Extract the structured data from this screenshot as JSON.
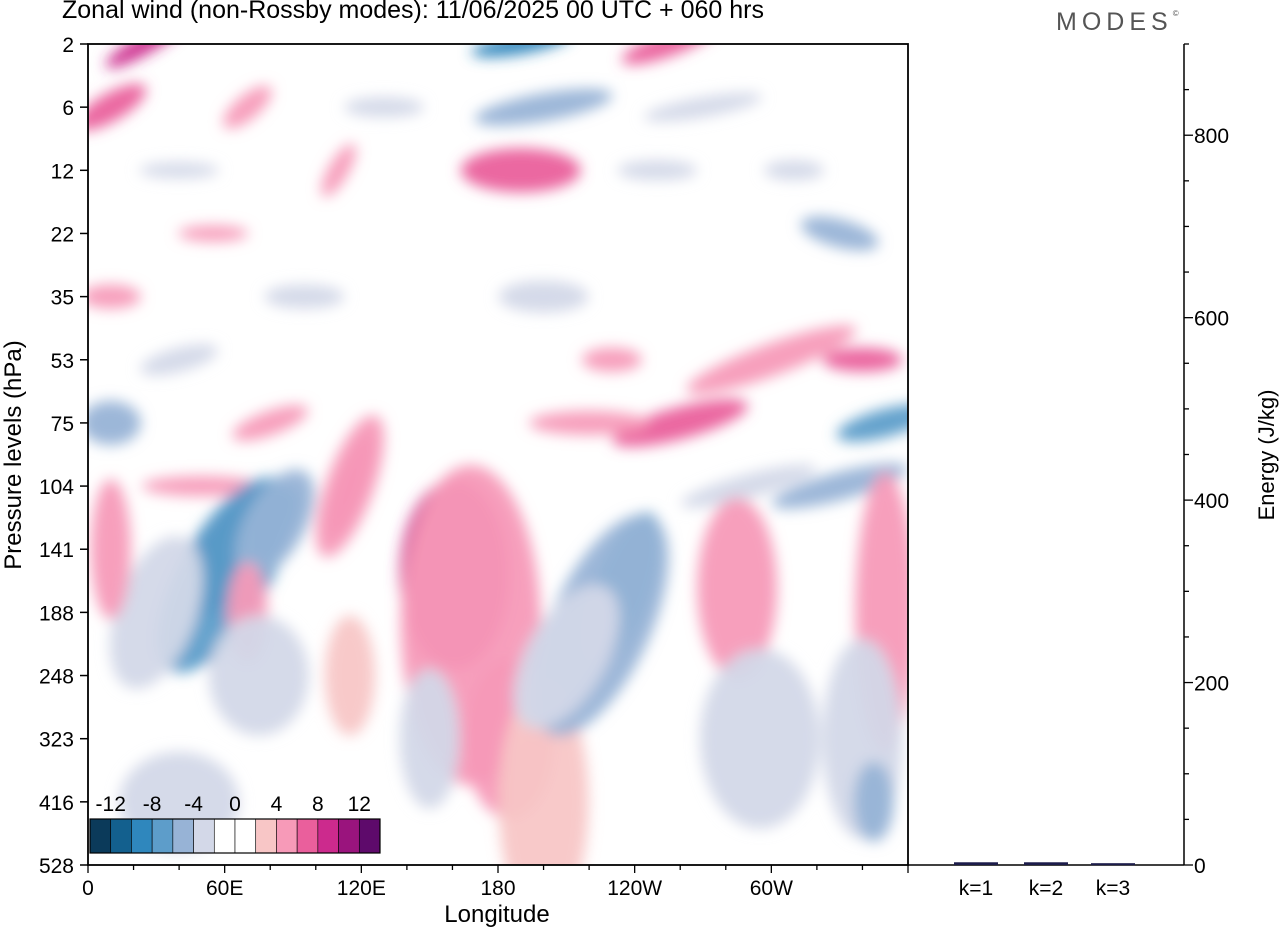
{
  "title": "Zonal wind (non-Rossby modes):  11/06/2025  00 UTC  + 060 hrs",
  "logo": "MODES",
  "chart_data": [
    {
      "type": "heatmap",
      "xlabel": "Longitude",
      "ylabel": "Pressure levels (hPa)",
      "x_ticks": [
        "0",
        "60E",
        "120E",
        "180",
        "120W",
        "60W"
      ],
      "y_ticks": [
        "2",
        "6",
        "12",
        "22",
        "35",
        "53",
        "75",
        "104",
        "141",
        "188",
        "248",
        "323",
        "416",
        "528"
      ],
      "colorbar": {
        "labels": [
          "-12",
          "-8",
          "-4",
          "0",
          "4",
          "8",
          "12"
        ],
        "colors": [
          "#0b3a5a",
          "#13608e",
          "#2f87bd",
          "#5d9dca",
          "#97b3d6",
          "#d3d8e8",
          "#ffffff",
          "#ffffff",
          "#f8c6c6",
          "#f79ab8",
          "#ea5f9c",
          "#cc2a8d",
          "#9a147d",
          "#5e0a6b"
        ]
      },
      "features": [
        {
          "lon": 62,
          "level": "141",
          "value": -14
        },
        {
          "lon": 80,
          "level": "130",
          "value": -9
        },
        {
          "lon": 152,
          "level": "150",
          "value": 11
        },
        {
          "lon": 170,
          "level": "150",
          "value": 11
        },
        {
          "lon": 235,
          "level": "170",
          "value": -11
        },
        {
          "lon": 250,
          "level": "85",
          "value": 6
        },
        {
          "lon": 190,
          "level": "14",
          "value": 7
        },
        {
          "lon": 190,
          "level": "2",
          "value": -9
        }
      ]
    },
    {
      "type": "bar",
      "ylabel": "Energy (J/kg)",
      "categories": [
        "k=1",
        "k=2",
        "k=3"
      ],
      "values": [
        3,
        3,
        2
      ],
      "y_ticks": [
        "0",
        "200",
        "400",
        "600",
        "800"
      ],
      "ylim": [
        0,
        900
      ],
      "bar_color": "#1c1c4a"
    }
  ]
}
